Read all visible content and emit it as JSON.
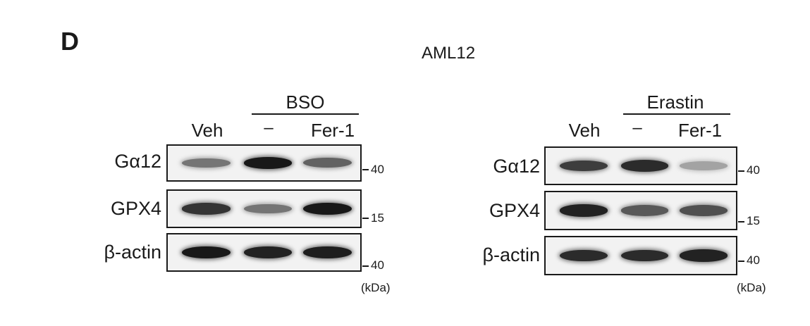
{
  "panel_letter": "D",
  "cell_line": "AML12",
  "units": "(kDa)",
  "left": {
    "treatment": "BSO",
    "lanes": [
      "Veh",
      "–",
      "Fer-1"
    ],
    "rows": [
      {
        "label": "Gα12",
        "mw": "40"
      },
      {
        "label": "GPX4",
        "mw": "15"
      },
      {
        "label": "β-actin",
        "mw": "40"
      }
    ]
  },
  "right": {
    "treatment": "Erastin",
    "lanes": [
      "Veh",
      "–",
      "Fer-1"
    ],
    "rows": [
      {
        "label": "Gα12",
        "mw": "40"
      },
      {
        "label": "GPX4",
        "mw": "15"
      },
      {
        "label": "β-actin",
        "mw": "40"
      }
    ]
  },
  "band_intensity": {
    "left": {
      "Gα12": [
        0.45,
        0.95,
        0.55
      ],
      "GPX4": [
        0.8,
        0.45,
        0.95
      ],
      "β-actin": [
        0.95,
        0.9,
        0.92
      ]
    },
    "right": {
      "Gα12": [
        0.75,
        0.85,
        0.2
      ],
      "GPX4": [
        0.9,
        0.6,
        0.65
      ],
      "β-actin": [
        0.85,
        0.85,
        0.9
      ]
    }
  }
}
